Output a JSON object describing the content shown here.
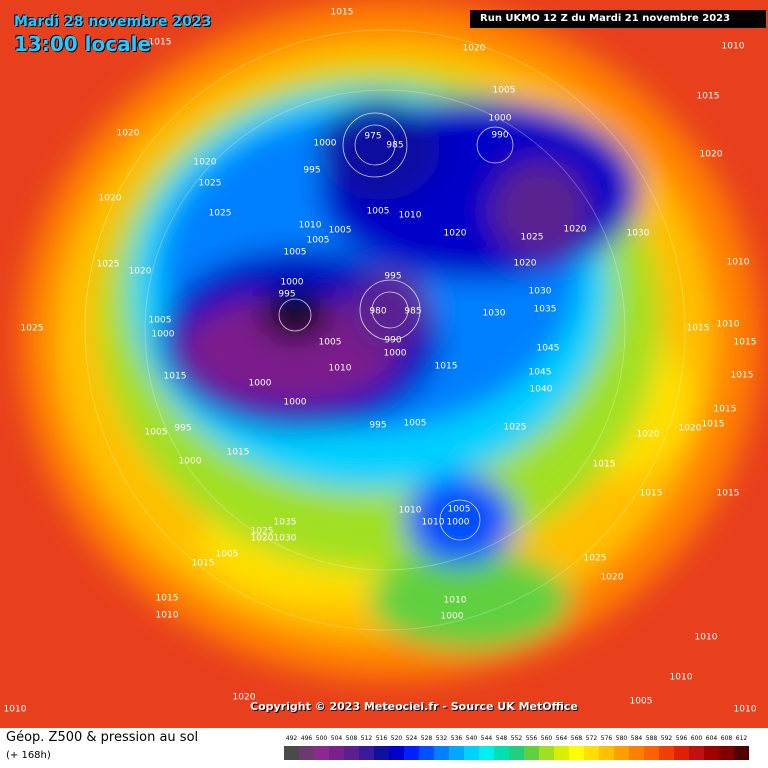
{
  "header": {
    "date": "Mardi 28 novembre 2023",
    "time": "13:00 locale",
    "run": "Run UKMO 12 Z du Mardi 21 novembre 2023"
  },
  "copyright": "Copyright © 2023 Meteociel.fr - Source UK MetOffice",
  "footer": {
    "title": "Géop. Z500 & pression au sol",
    "lead": "(+ 168h)"
  },
  "legend": {
    "labels": [
      492,
      496,
      500,
      504,
      508,
      512,
      516,
      520,
      524,
      528,
      532,
      536,
      540,
      544,
      548,
      552,
      556,
      560,
      564,
      568,
      572,
      576,
      580,
      584,
      588,
      592,
      596,
      600,
      604,
      608,
      612
    ],
    "colors": [
      "#4a4a4a",
      "#6e3a6e",
      "#8a2a8a",
      "#7b1f8c",
      "#5a2090",
      "#3a1a9a",
      "#1010a0",
      "#0000c8",
      "#0020ff",
      "#0050ff",
      "#0080ff",
      "#00a8ff",
      "#00d0ff",
      "#00f0f0",
      "#00e0b0",
      "#20d080",
      "#60d040",
      "#a0e020",
      "#d8f000",
      "#ffff00",
      "#ffe000",
      "#ffc000",
      "#ffa000",
      "#ff8000",
      "#ff6000",
      "#f04000",
      "#e02000",
      "#c01010",
      "#a00000",
      "#800000",
      "#500000"
    ]
  },
  "isobar_labels": [
    "1015",
    "1015",
    "1020",
    "1010",
    "1005",
    "1015",
    "1020",
    "1020",
    "1025",
    "1020",
    "1020",
    "1000",
    "990",
    "975",
    "1000",
    "985",
    "995",
    "1005",
    "1010",
    "1020",
    "1025",
    "1020",
    "1030",
    "1010",
    "1005",
    "1005",
    "1025",
    "1005",
    "1025",
    "1020",
    "1010",
    "1020",
    "995",
    "1030",
    "1000",
    "995",
    "980",
    "985",
    "1030",
    "1035",
    "1025",
    "1005",
    "1000",
    "990",
    "1005",
    "1000",
    "1045",
    "1015",
    "1010",
    "1015",
    "1015",
    "1010",
    "1015",
    "1045",
    "1000",
    "1040",
    "1015",
    "1000",
    "1015",
    "995",
    "1005",
    "1025",
    "1005",
    "995",
    "1020",
    "1020",
    "1015",
    "1000",
    "1015",
    "1015",
    "1015",
    "1015",
    "1010",
    "1005",
    "1010",
    "1000",
    "1035",
    "1025",
    "1020",
    "1030",
    "1005",
    "1015",
    "1025",
    "1020",
    "1015",
    "1010",
    "1010",
    "1000",
    "1010",
    "1010",
    "1020",
    "1005",
    "1010",
    "1010"
  ]
}
